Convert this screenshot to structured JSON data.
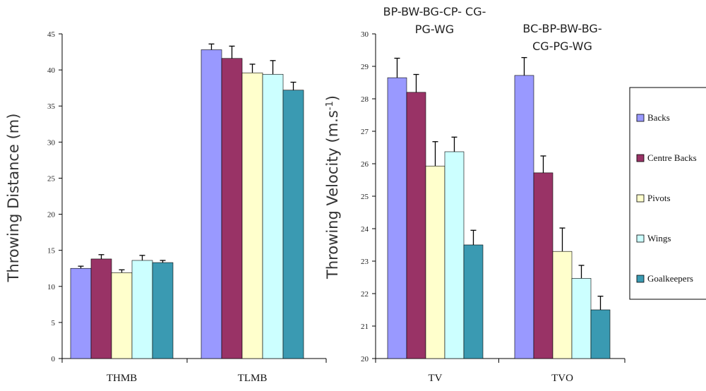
{
  "chart_data": [
    {
      "type": "bar",
      "categories": [
        "THMB",
        "TLMB"
      ],
      "ylabel": "Throwing Distance (m)",
      "ylim": [
        0,
        45
      ],
      "yticks": [
        0,
        5,
        10,
        15,
        20,
        25,
        30,
        35,
        40,
        45
      ],
      "series": [
        {
          "name": "Backs",
          "values": [
            12.5,
            42.8
          ],
          "errors": [
            0.3,
            0.8
          ]
        },
        {
          "name": "Centre Backs",
          "values": [
            13.8,
            41.6
          ],
          "errors": [
            0.6,
            1.7
          ]
        },
        {
          "name": "Pivots",
          "values": [
            11.9,
            39.6
          ],
          "errors": [
            0.4,
            1.2
          ]
        },
        {
          "name": "Wings",
          "values": [
            13.6,
            39.4
          ],
          "errors": [
            0.7,
            1.9
          ]
        },
        {
          "name": "Goalkeepers",
          "values": [
            13.3,
            37.2
          ],
          "errors": [
            0.3,
            1.1
          ]
        }
      ]
    },
    {
      "type": "bar",
      "categories": [
        "TV",
        "TVO"
      ],
      "ylabel": "Throwing Velocity (m.s",
      "ylabel_sup": "-1",
      "ylabel_end": ")",
      "ylim": [
        20,
        30
      ],
      "yticks": [
        20,
        21,
        22,
        23,
        24,
        25,
        26,
        27,
        28,
        29,
        30
      ],
      "ytick_labels": [
        "20",
        "21",
        "22",
        "23",
        "24",
        "25",
        "26",
        "27",
        "28",
        "29",
        "30"
      ],
      "annotations": [
        {
          "category": "TV",
          "lines": [
            "BP-BW-BG-CP-   CG-",
            "PG-WG"
          ]
        },
        {
          "category": "TVO",
          "lines": [
            "BC-BP-BW-BG-",
            "CG-PG-WG"
          ]
        }
      ],
      "series": [
        {
          "name": "Backs",
          "values": [
            28.65,
            28.72
          ],
          "errors": [
            0.6,
            0.55
          ]
        },
        {
          "name": "Centre Backs",
          "values": [
            28.2,
            25.72
          ],
          "errors": [
            0.55,
            0.52
          ]
        },
        {
          "name": "Pivots",
          "values": [
            25.93,
            23.3
          ],
          "errors": [
            0.75,
            0.72
          ]
        },
        {
          "name": "Wings",
          "values": [
            26.37,
            22.47
          ],
          "errors": [
            0.45,
            0.4
          ]
        },
        {
          "name": "Goalkeepers",
          "values": [
            23.5,
            21.5
          ],
          "errors": [
            0.45,
            0.42
          ]
        }
      ]
    }
  ],
  "legend": {
    "placement": "right",
    "items": [
      "Backs",
      "Centre Backs",
      "Pivots",
      "Wings",
      "Goalkeepers"
    ]
  },
  "colors": {
    "Backs": "#9999ff",
    "Centre Backs": "#993366",
    "Pivots": "#ffffcc",
    "Wings": "#ccffff",
    "Goalkeepers": "#3a9ab2",
    "axis": "#000000",
    "error_bar": "#000000"
  }
}
